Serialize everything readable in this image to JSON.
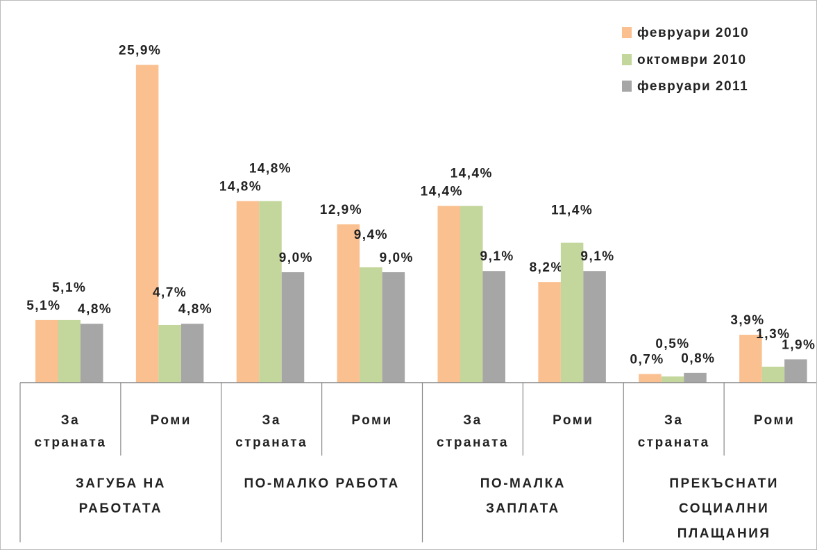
{
  "chart_data": {
    "type": "bar",
    "categories": [
      "За\nстраната",
      "Роми",
      "За\nстраната",
      "Роми",
      "За\nстраната",
      "Роми",
      "За\nстраната",
      "Роми"
    ],
    "groups": [
      "ЗАГУБА НА\nРАБОТАТА",
      "ПО-МАЛКО РАБОТА",
      "ПО-МАЛКА\nЗАПЛАТА",
      "ПРЕКЪСНАТИ\nСОЦИАЛНИ\nПЛАЩАНИЯ"
    ],
    "series": [
      {
        "name": "февруари 2010",
        "color": "#fac090",
        "values": [
          5.1,
          25.9,
          14.8,
          12.9,
          14.4,
          8.2,
          0.7,
          3.9
        ],
        "value_labels": [
          "5,1%",
          "25,9%",
          "14,8%",
          "12,9%",
          "14,4%",
          "8,2%",
          "0,7%",
          "3,9%"
        ]
      },
      {
        "name": "октомври 2010",
        "color": "#c3d69b",
        "values": [
          5.1,
          4.7,
          14.8,
          9.4,
          14.4,
          11.4,
          0.5,
          1.3
        ],
        "value_labels": [
          "5,1%",
          "4,7%",
          "14,8%",
          "9,4%",
          "14,4%",
          "11,4%",
          "0,5%",
          "1,3%"
        ]
      },
      {
        "name": "февруари 2011",
        "color": "#a6a6a6",
        "values": [
          4.8,
          4.8,
          9.0,
          9.0,
          9.1,
          9.1,
          0.8,
          1.9
        ],
        "value_labels": [
          "4,8%",
          "4,8%",
          "9,0%",
          "9,0%",
          "9,1%",
          "9,1%",
          "0,8%",
          "1,9%"
        ]
      }
    ],
    "ylim": [
      0,
      30
    ],
    "legend": "top-right"
  }
}
